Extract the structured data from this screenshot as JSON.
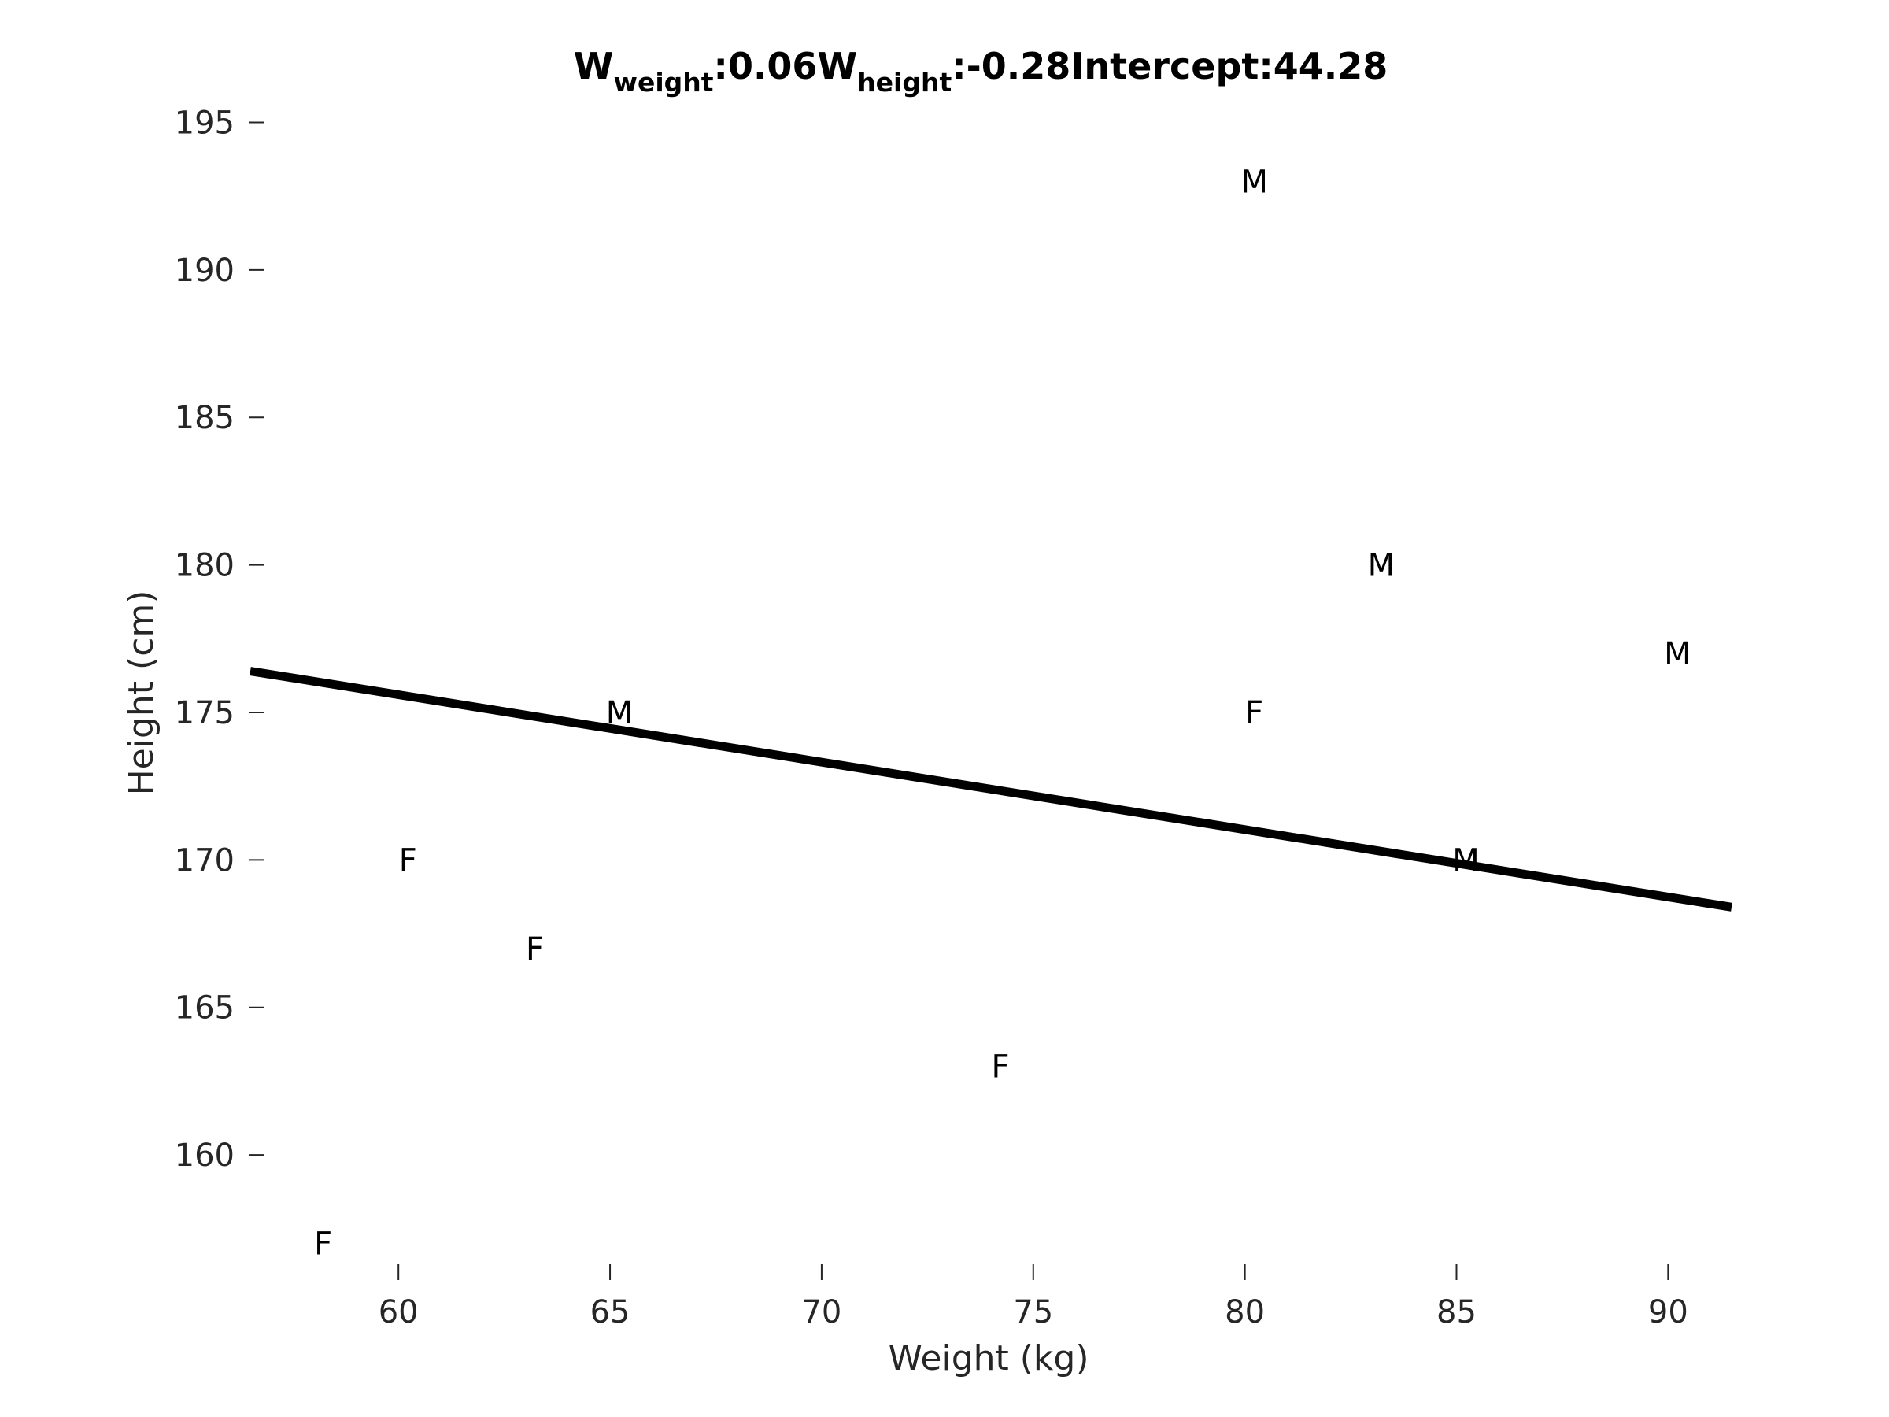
{
  "chart_data": {
    "type": "scatter",
    "title": {
      "w_symbol": "W",
      "w_weight_sub": "weight",
      "w_weight_value": ":0.06",
      "w_height_sub": "height",
      "w_height_value": ":-0.28",
      "intercept": "Intercept:44.28"
    },
    "xlabel": "Weight (kg)",
    "ylabel": "Height (cm)",
    "xlim": [
      56.5,
      91.5
    ],
    "ylim": [
      156,
      196
    ],
    "xticks": [
      60,
      65,
      70,
      75,
      80,
      85,
      90
    ],
    "yticks": [
      160,
      165,
      170,
      175,
      180,
      185,
      190,
      195
    ],
    "grid": false,
    "points": [
      {
        "x": 58,
        "y": 157,
        "label": "F"
      },
      {
        "x": 60,
        "y": 170,
        "label": "F"
      },
      {
        "x": 63,
        "y": 167,
        "label": "F"
      },
      {
        "x": 65,
        "y": 175,
        "label": "M"
      },
      {
        "x": 74,
        "y": 163,
        "label": "F"
      },
      {
        "x": 80,
        "y": 193,
        "label": "M"
      },
      {
        "x": 80,
        "y": 175,
        "label": "F"
      },
      {
        "x": 83,
        "y": 180,
        "label": "M"
      },
      {
        "x": 85,
        "y": 170,
        "label": "M"
      },
      {
        "x": 90,
        "y": 177,
        "label": "M"
      }
    ],
    "line": {
      "x": [
        56.5,
        91.5
      ],
      "y": [
        176.4,
        168.4
      ],
      "color": "#000000"
    }
  }
}
